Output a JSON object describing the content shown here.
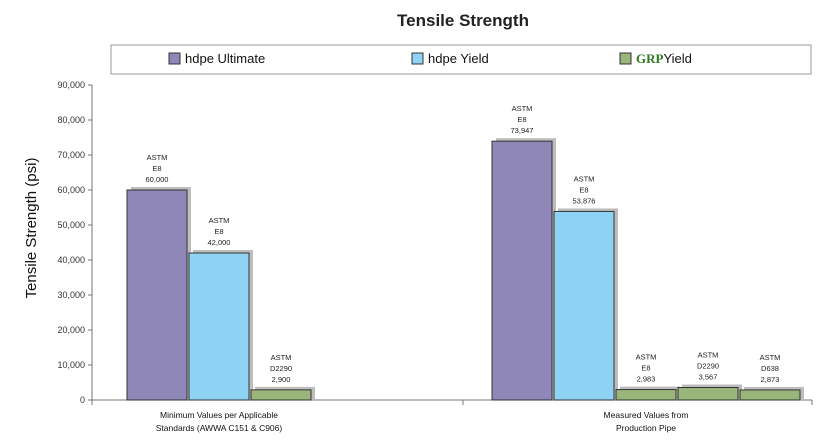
{
  "chart_data": {
    "type": "bar",
    "title": "Tensile Strength",
    "ylabel": "Tensile Strength (psi)",
    "xlabel": "",
    "ylim": [
      0,
      90000
    ],
    "yticks": [
      "0",
      "10,000",
      "20,000",
      "30,000",
      "40,000",
      "50,000",
      "60,000",
      "70,000",
      "80,000",
      "90,000"
    ],
    "grid": false,
    "legend_position": "top",
    "legend": [
      {
        "prefix": "hdpe",
        "suffix": " Ultimate",
        "color": "#8e87b8"
      },
      {
        "prefix": "hdpe",
        "suffix": " Yield",
        "color": "#8fd3f4"
      },
      {
        "prefix": "GRP",
        "suffix": "Yield",
        "color": "#9ab67a",
        "prefix_color": "#2f7a1f"
      }
    ],
    "groups": [
      {
        "category": [
          "Minimum Values per Applicable",
          "Standards (AWWA C151 & C906)"
        ],
        "bars": [
          {
            "series": "hdpe Ultimate",
            "value": 60000,
            "label": [
              "ASTM",
              "E8",
              "60,000"
            ]
          },
          {
            "series": "hdpe Yield",
            "value": 42000,
            "label": [
              "ASTM",
              "E8",
              "42,000"
            ]
          },
          {
            "series": "GRP Yield",
            "value": 2900,
            "label": [
              "ASTM",
              "D2290",
              "2,900"
            ]
          }
        ]
      },
      {
        "category": [
          "Measured Values from",
          "Production Pipe"
        ],
        "bars": [
          {
            "series": "hdpe Ultimate",
            "value": 73947,
            "label": [
              "ASTM",
              "E8",
              "73,947"
            ]
          },
          {
            "series": "hdpe Yield",
            "value": 53876,
            "label": [
              "ASTM",
              "E8",
              "53,876"
            ]
          },
          {
            "series": "GRP Yield",
            "value": 2983,
            "label": [
              "ASTM",
              "E8",
              "2,983"
            ]
          },
          {
            "series": "GRP Yield",
            "value": 3567,
            "label": [
              "ASTM",
              "D2290",
              "3,567"
            ]
          },
          {
            "series": "GRP Yield",
            "value": 2873,
            "label": [
              "ASTM",
              "D638",
              "2,873"
            ]
          }
        ]
      }
    ],
    "colors": {
      "hdpe Ultimate": "#8e87b8",
      "hdpe Yield": "#8fd3f4",
      "GRP Yield": "#9ab67a"
    }
  }
}
